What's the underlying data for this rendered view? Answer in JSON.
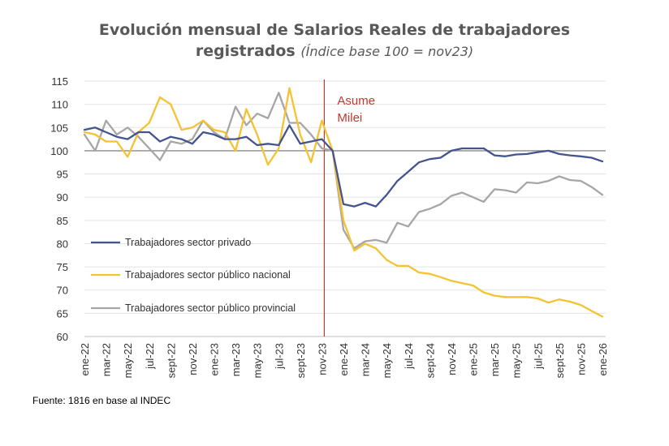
{
  "chart_data": {
    "type": "line",
    "title_line1": "Evolución mensual de Salarios Reales de trabajadores",
    "title_line2": "registrados",
    "subtitle": "(Índice base 100 = nov23)",
    "xlabel": "",
    "ylabel": "",
    "ylim": [
      60,
      115
    ],
    "yticks": [
      60,
      65,
      70,
      75,
      80,
      85,
      90,
      95,
      100,
      105,
      110,
      115
    ],
    "grid": true,
    "legend_position": "left-middle",
    "x": [
      "ene-22",
      "feb-22",
      "mar-22",
      "abr-22",
      "may-22",
      "jun-22",
      "jul-22",
      "ago-22",
      "sept-22",
      "oct-22",
      "nov-22",
      "dic-22",
      "ene-23",
      "feb-23",
      "mar-23",
      "abr-23",
      "may-23",
      "jun-23",
      "jul-23",
      "ago-23",
      "sept-23",
      "oct-23",
      "nov-23",
      "dic-23",
      "ene-24",
      "feb-24",
      "mar-24",
      "abr-24",
      "may-24",
      "jun-24",
      "jul-24",
      "ago-24",
      "sept-24",
      "oct-24",
      "nov-24",
      "dic-24",
      "ene-25",
      "feb-25",
      "mar-25",
      "abr-25",
      "may-25",
      "jun-25",
      "jul-25",
      "ago-25",
      "sept-25",
      "oct-25",
      "nov-25",
      "dic-25",
      "ene-26"
    ],
    "x_tick_labels": [
      "ene-22",
      "",
      "mar-22",
      "",
      "may-22",
      "",
      "jul-22",
      "",
      "sept-22",
      "",
      "nov-22",
      "",
      "ene-23",
      "",
      "mar-23",
      "",
      "may-23",
      "",
      "jul-23",
      "",
      "sept-23",
      "",
      "nov-23",
      "",
      "ene-24",
      "",
      "mar-24",
      "",
      "may-24",
      "",
      "jul-24",
      "",
      "sept-24",
      "",
      "nov-24",
      "",
      "ene-25",
      "",
      "mar-25",
      "",
      "may-25",
      "",
      "jul-25",
      "",
      "sept-25",
      "",
      "nov-25",
      "",
      "ene-26"
    ],
    "series": [
      {
        "name": "Trabajadores sector privado",
        "color": "#44548f",
        "values": [
          104.5,
          105,
          104,
          103,
          102.5,
          104,
          104,
          102,
          103,
          102.5,
          101.5,
          104,
          103.5,
          102.5,
          102.5,
          103,
          101.2,
          101.5,
          101.2,
          105.5,
          101.5,
          102,
          102.5,
          100,
          88.5,
          88,
          88.8,
          88,
          90.5,
          93.5,
          95.5,
          97.5,
          98.2,
          98.5,
          100,
          100.5,
          100.5,
          100.5,
          99,
          98.8,
          99.2,
          99.3,
          99.7,
          100,
          99.3,
          99,
          98.8,
          98.5,
          97.7
        ]
      },
      {
        "name": "Trabajadores sector público nacional",
        "color": "#f5c232",
        "values": [
          104,
          103.5,
          102,
          102,
          98.7,
          104,
          106,
          111.5,
          110,
          104.5,
          105,
          106.5,
          104.5,
          104,
          100,
          109,
          103.5,
          97,
          100.5,
          113.5,
          103.5,
          97.5,
          106.5,
          100,
          85,
          78.5,
          80,
          79,
          76.5,
          75.2,
          75.2,
          73.8,
          73.5,
          72.8,
          72,
          71.5,
          71,
          69.5,
          68.8,
          68.5,
          68.5,
          68.5,
          68.2,
          67.3,
          68,
          67.5,
          66.8,
          65.5,
          64.3
        ]
      },
      {
        "name": "Trabajadores sector público provincial",
        "color": "#a6a6a6",
        "values": [
          103.5,
          100,
          106.5,
          103.5,
          105,
          103,
          100.5,
          98,
          102,
          101.5,
          102.5,
          106.5,
          104,
          102.5,
          109.5,
          105.5,
          108,
          107,
          112.5,
          106,
          106,
          103.5,
          100.5,
          100,
          83,
          79,
          80.5,
          80.8,
          80.2,
          84.5,
          83.7,
          86.8,
          87.5,
          88.5,
          90.3,
          91,
          90,
          89,
          91.7,
          91.5,
          91,
          93.2,
          93,
          93.5,
          94.5,
          93.7,
          93.5,
          92.2,
          90.5
        ]
      }
    ],
    "annotation": {
      "line1": "Asume",
      "line2": "Milei",
      "at": "nov-23",
      "color": "#c0392b"
    },
    "reference_line": 100
  },
  "source": "Fuente: 1816 en base al INDEC"
}
